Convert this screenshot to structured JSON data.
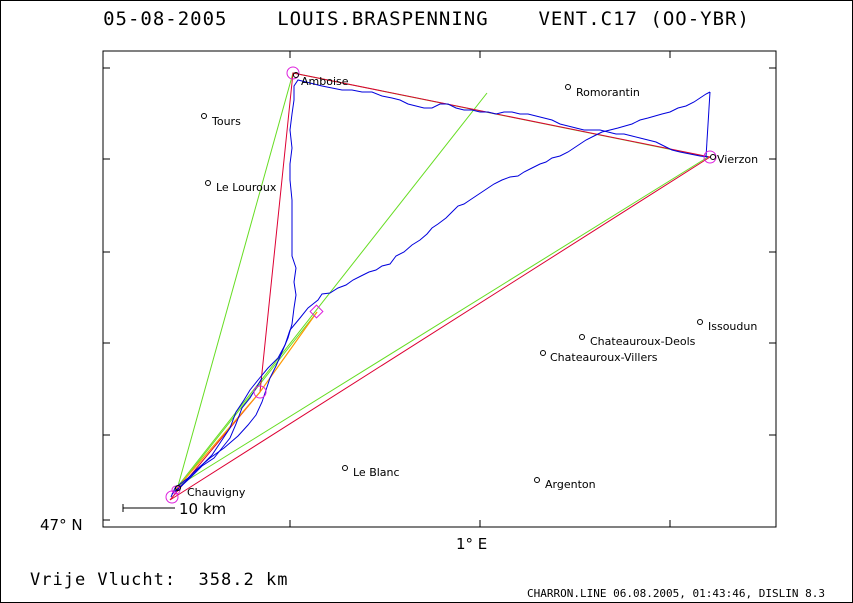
{
  "title": {
    "date": "05-08-2005",
    "pilot": "LOUIS.BRASPENNING",
    "glider": "VENT.C17 (OO-YBR)"
  },
  "axes": {
    "x_tick_label": "1° E",
    "y_tick_label": "47° N"
  },
  "scale_bar_label": "10 km",
  "footer": {
    "distance_label": "Vrije Vlucht:",
    "distance_value": "358.2 km",
    "software_info": "CHARRON.LINE 06.08.2005, 01:43:46, DISLIN 8.3"
  },
  "places": [
    {
      "name": "Amboise"
    },
    {
      "name": "Romorantin"
    },
    {
      "name": "Tours"
    },
    {
      "name": "Vierzon"
    },
    {
      "name": "Le Louroux"
    },
    {
      "name": "Issoudun"
    },
    {
      "name": "Chateauroux-Deols"
    },
    {
      "name": "Chateauroux-Villers"
    },
    {
      "name": "Le Blanc"
    },
    {
      "name": "Argenton"
    },
    {
      "name": "Chauvigny"
    }
  ],
  "colors": {
    "track": "#0000dd",
    "optimized_route": "#dd0033",
    "declared_route": "#66dd22",
    "turnpoint": "#dd22dd",
    "leg": "#ff9900"
  }
}
